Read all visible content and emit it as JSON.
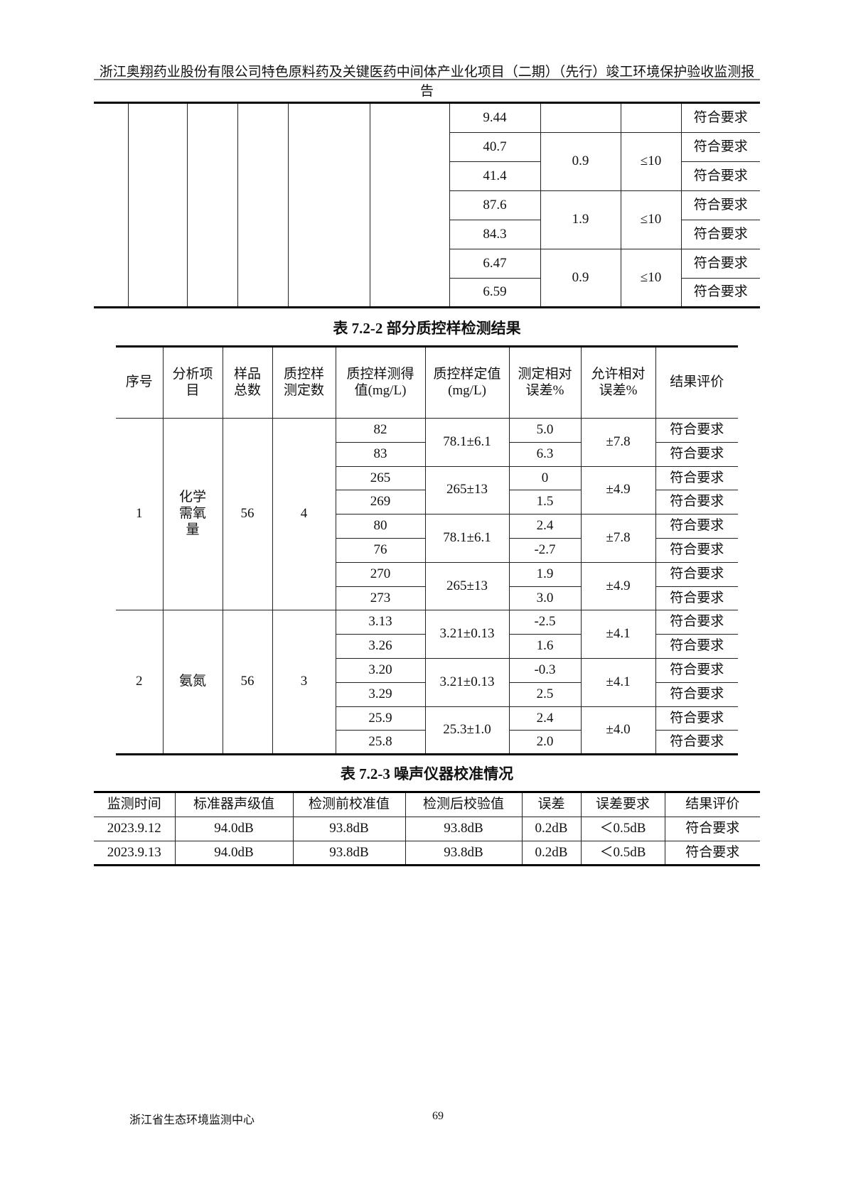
{
  "header": {
    "title": "浙江奥翔药业股份有限公司特色原料药及关键医药中间体产业化项目（二期）（先行）竣工环境保护验收监测报告"
  },
  "table1": {
    "first_row": {
      "value": "9.44",
      "result": "符合要求"
    },
    "groups": [
      {
        "values": [
          "40.7",
          "41.4"
        ],
        "rel_error": "0.9",
        "limit": "≤10",
        "results": [
          "符合要求",
          "符合要求"
        ]
      },
      {
        "values": [
          "87.6",
          "84.3"
        ],
        "rel_error": "1.9",
        "limit": "≤10",
        "results": [
          "符合要求",
          "符合要求"
        ]
      },
      {
        "values": [
          "6.47",
          "6.59"
        ],
        "rel_error": "0.9",
        "limit": "≤10",
        "results": [
          "符合要求",
          "符合要求"
        ]
      }
    ]
  },
  "table2": {
    "caption": "表 7.2-2  部分质控样检测结果",
    "headers": [
      "序号",
      "分析项目",
      "样品总数",
      "质控样测定数",
      "质控样测得值(mg/L)",
      "质控样定值(mg/L)",
      "测定相对误差%",
      "允许相对误差%",
      "结果评价"
    ],
    "items": [
      {
        "no": "1",
        "item": "化学需氧量",
        "total": "56",
        "count": "4",
        "pairs": [
          {
            "std": "78.1±6.1",
            "allow": "±7.8",
            "rows": [
              [
                "82",
                "5.0",
                "符合要求"
              ],
              [
                "83",
                "6.3",
                "符合要求"
              ]
            ]
          },
          {
            "std": "265±13",
            "allow": "±4.9",
            "rows": [
              [
                "265",
                "0",
                "符合要求"
              ],
              [
                "269",
                "1.5",
                "符合要求"
              ]
            ]
          },
          {
            "std": "78.1±6.1",
            "allow": "±7.8",
            "rows": [
              [
                "80",
                "2.4",
                "符合要求"
              ],
              [
                "76",
                "-2.7",
                "符合要求"
              ]
            ]
          },
          {
            "std": "265±13",
            "allow": "±4.9",
            "rows": [
              [
                "270",
                "1.9",
                "符合要求"
              ],
              [
                "273",
                "3.0",
                "符合要求"
              ]
            ]
          }
        ]
      },
      {
        "no": "2",
        "item": "氨氮",
        "total": "56",
        "count": "3",
        "pairs": [
          {
            "std": "3.21±0.13",
            "allow": "±4.1",
            "rows": [
              [
                "3.13",
                "-2.5",
                "符合要求"
              ],
              [
                "3.26",
                "1.6",
                "符合要求"
              ]
            ]
          },
          {
            "std": "3.21±0.13",
            "allow": "±4.1",
            "rows": [
              [
                "3.20",
                "-0.3",
                "符合要求"
              ],
              [
                "3.29",
                "2.5",
                "符合要求"
              ]
            ]
          },
          {
            "std": "25.3±1.0",
            "allow": "±4.0",
            "rows": [
              [
                "25.9",
                "2.4",
                "符合要求"
              ],
              [
                "25.8",
                "2.0",
                "符合要求"
              ]
            ]
          }
        ]
      }
    ]
  },
  "table3": {
    "caption": "表 7.2-3  噪声仪器校准情况",
    "headers": [
      "监测时间",
      "标准器声级值",
      "检测前校准值",
      "检测后校验值",
      "误差",
      "误差要求",
      "结果评价"
    ],
    "rows": [
      [
        "2023.9.12",
        "94.0dB",
        "93.8dB",
        "93.8dB",
        "0.2dB",
        "＜0.5dB",
        "符合要求"
      ],
      [
        "2023.9.13",
        "94.0dB",
        "93.8dB",
        "93.8dB",
        "0.2dB",
        "＜0.5dB",
        "符合要求"
      ]
    ]
  },
  "footer": {
    "org": "浙江省生态环境监测中心",
    "page": "69"
  }
}
